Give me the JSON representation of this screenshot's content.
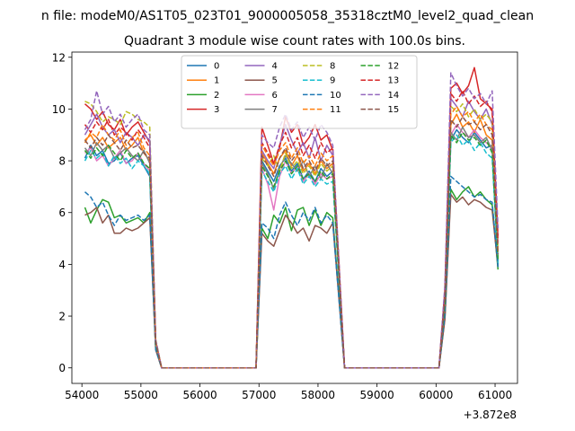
{
  "window": {
    "suptitle": "n file: modeM0/AS1T05_023T01_9000005058_35318cztM0_level2_quad_clean"
  },
  "chart_data": {
    "type": "line",
    "title": "Quadrant 3 module wise count rates with 100.0s bins.",
    "xlabel": "",
    "ylabel": "",
    "x_offset_label": "+3.872e8",
    "xlim": [
      53830,
      61380
    ],
    "ylim": [
      -0.6,
      12.2
    ],
    "x_ticks": [
      54000,
      55000,
      56000,
      57000,
      58000,
      59000,
      60000,
      61000
    ],
    "x_tick_labels": [
      "54000",
      "55000",
      "56000",
      "57000",
      "58000",
      "59000",
      "60000",
      "61000"
    ],
    "y_ticks": [
      0,
      2,
      4,
      6,
      8,
      10,
      12
    ],
    "y_tick_labels": [
      "0",
      "2",
      "4",
      "6",
      "8",
      "10",
      "12"
    ],
    "grid": false,
    "legend": {
      "position": "upper-center",
      "columns": 4
    },
    "bins": {
      "seg1": [
        54050,
        54150,
        54250,
        54350,
        54450,
        54550,
        54650,
        54750,
        54850,
        54950,
        55050,
        55150
      ],
      "seg2": [
        57050,
        57150,
        57250,
        57350,
        57450,
        57550,
        57650,
        57750,
        57850,
        57950,
        58050,
        58150,
        58250
      ],
      "seg3": [
        60250,
        60350,
        60450,
        60550,
        60650,
        60750,
        60850,
        60950,
        61050
      ]
    },
    "series": [
      {
        "name": "0",
        "color": "#1f77b4",
        "dash": false,
        "seg1": [
          8.1,
          8.6,
          8.2,
          8.4,
          7.9,
          8.0,
          8.3,
          7.9,
          8.1,
          8.2,
          7.8,
          7.4
        ],
        "seg2": [
          8.0,
          7.6,
          7.2,
          7.8,
          8.1,
          7.6,
          7.9,
          7.3,
          7.6,
          7.2,
          7.7,
          7.4,
          7.6
        ],
        "seg3": [
          8.8,
          9.2,
          8.9,
          8.7,
          9.1,
          8.8,
          8.5,
          8.6,
          4.0
        ]
      },
      {
        "name": "1",
        "color": "#ff7f0e",
        "dash": false,
        "seg1": [
          8.8,
          9.0,
          8.6,
          8.9,
          8.5,
          8.7,
          8.9,
          8.4,
          8.6,
          8.9,
          8.3,
          8.0
        ],
        "seg2": [
          8.3,
          7.9,
          7.5,
          8.1,
          8.4,
          7.8,
          8.2,
          7.6,
          7.9,
          7.5,
          8.0,
          7.7,
          7.9
        ],
        "seg3": [
          9.4,
          9.8,
          9.3,
          9.5,
          9.1,
          9.6,
          9.0,
          8.8,
          4.3
        ]
      },
      {
        "name": "2",
        "color": "#2ca02c",
        "dash": false,
        "seg1": [
          6.2,
          5.6,
          6.1,
          6.5,
          6.4,
          5.8,
          5.9,
          5.6,
          5.7,
          5.8,
          5.6,
          6.0
        ],
        "seg2": [
          5.4,
          5.0,
          5.9,
          5.6,
          6.2,
          5.3,
          6.1,
          6.2,
          5.5,
          6.1,
          5.5,
          6.0,
          5.8
        ],
        "seg3": [
          6.9,
          6.5,
          6.8,
          7.0,
          6.6,
          6.8,
          6.5,
          6.3,
          3.8
        ]
      },
      {
        "name": "3",
        "color": "#d62728",
        "dash": false,
        "seg1": [
          10.2,
          10.0,
          9.6,
          9.9,
          9.4,
          9.2,
          9.6,
          9.0,
          9.3,
          9.5,
          9.1,
          8.7
        ],
        "seg2": [
          9.3,
          8.6,
          7.9,
          8.5,
          9.7,
          9.1,
          9.4,
          8.6,
          8.9,
          9.4,
          8.8,
          9.0,
          8.4
        ],
        "seg3": [
          10.8,
          11.0,
          10.6,
          10.9,
          11.6,
          10.4,
          10.2,
          10.0,
          5.1
        ]
      },
      {
        "name": "4",
        "color": "#9467bd",
        "dash": false,
        "seg1": [
          9.0,
          9.4,
          9.8,
          9.3,
          9.0,
          9.2,
          8.7,
          9.1,
          8.9,
          8.6,
          9.0,
          8.8
        ],
        "seg2": [
          8.4,
          8.0,
          7.7,
          8.6,
          9.4,
          8.8,
          8.3,
          8.7,
          8.1,
          8.9,
          8.0,
          8.6,
          8.2
        ],
        "seg3": [
          10.4,
          10.1,
          9.7,
          10.3,
          9.9,
          9.6,
          10.0,
          9.4,
          4.8
        ]
      },
      {
        "name": "5",
        "color": "#8c564b",
        "dash": false,
        "seg1": [
          5.9,
          6.0,
          6.2,
          5.6,
          5.9,
          5.2,
          5.2,
          5.4,
          5.3,
          5.4,
          5.6,
          5.8
        ],
        "seg2": [
          5.2,
          4.9,
          4.7,
          5.3,
          5.9,
          5.6,
          5.2,
          5.4,
          4.9,
          5.5,
          5.4,
          5.2,
          5.6
        ],
        "seg3": [
          6.7,
          6.4,
          6.6,
          6.3,
          6.5,
          6.4,
          6.2,
          6.1,
          3.9
        ]
      },
      {
        "name": "6",
        "color": "#e377c2",
        "dash": false,
        "seg1": [
          8.3,
          8.5,
          8.0,
          8.2,
          7.8,
          8.1,
          8.4,
          7.9,
          8.0,
          8.3,
          7.9,
          7.6
        ],
        "seg2": [
          7.7,
          7.1,
          6.1,
          7.4,
          8.0,
          7.5,
          7.8,
          7.2,
          7.5,
          7.1,
          7.5,
          7.3,
          7.4
        ],
        "seg3": [
          9.0,
          9.4,
          9.1,
          8.9,
          9.2,
          8.9,
          8.7,
          8.5,
          4.2
        ]
      },
      {
        "name": "7",
        "color": "#7f7f7f",
        "dash": false,
        "seg1": [
          8.5,
          8.2,
          8.7,
          8.4,
          8.6,
          8.1,
          8.3,
          8.5,
          8.2,
          8.0,
          8.4,
          7.9
        ],
        "seg2": [
          7.9,
          7.5,
          6.9,
          7.7,
          8.2,
          7.9,
          7.6,
          8.0,
          7.4,
          7.8,
          7.3,
          7.9,
          7.5
        ],
        "seg3": [
          9.1,
          8.8,
          9.3,
          8.9,
          9.0,
          8.7,
          8.9,
          8.4,
          4.1
        ]
      },
      {
        "name": "8",
        "color": "#bcbd22",
        "dash": true,
        "seg1": [
          10.3,
          10.2,
          9.9,
          9.5,
          9.7,
          9.6,
          9.4,
          9.9,
          9.8,
          9.6,
          9.5,
          9.3
        ],
        "seg2": [
          8.1,
          7.8,
          8.2,
          7.6,
          8.3,
          7.7,
          8.0,
          7.5,
          7.8,
          7.4,
          7.9,
          7.6,
          7.8
        ],
        "seg3": [
          10.1,
          9.9,
          10.2,
          9.7,
          10.0,
          9.6,
          9.8,
          9.5,
          4.6
        ]
      },
      {
        "name": "9",
        "color": "#17becf",
        "dash": true,
        "seg1": [
          8.0,
          8.4,
          8.1,
          8.3,
          7.8,
          8.2,
          7.9,
          8.1,
          7.7,
          8.0,
          7.8,
          7.5
        ],
        "seg2": [
          7.6,
          7.2,
          6.8,
          7.5,
          7.8,
          7.3,
          7.7,
          7.1,
          7.4,
          7.0,
          7.3,
          7.1,
          7.2
        ],
        "seg3": [
          8.7,
          9.0,
          8.6,
          8.8,
          8.4,
          8.7,
          8.3,
          8.1,
          4.0
        ]
      },
      {
        "name": "10",
        "color": "#1f77b4",
        "dash": true,
        "seg1": [
          6.8,
          6.6,
          6.2,
          6.4,
          5.9,
          5.5,
          5.9,
          5.7,
          5.8,
          5.9,
          5.7,
          5.9
        ],
        "seg2": [
          5.6,
          5.4,
          5.0,
          5.9,
          6.4,
          5.9,
          5.5,
          6.0,
          5.7,
          6.2,
          5.6,
          5.9,
          5.6
        ],
        "seg3": [
          7.4,
          7.2,
          7.0,
          6.8,
          6.6,
          6.7,
          6.5,
          6.4,
          3.9
        ]
      },
      {
        "name": "11",
        "color": "#ff7f0e",
        "dash": true,
        "seg1": [
          8.7,
          9.1,
          8.9,
          9.4,
          9.0,
          8.8,
          9.2,
          8.6,
          8.9,
          9.1,
          8.5,
          8.2
        ],
        "seg2": [
          8.6,
          8.2,
          7.8,
          8.4,
          8.7,
          8.1,
          8.5,
          7.9,
          8.2,
          7.8,
          8.3,
          8.0,
          8.2
        ],
        "seg3": [
          9.8,
          10.1,
          9.7,
          9.9,
          9.5,
          9.8,
          9.4,
          9.2,
          4.5
        ]
      },
      {
        "name": "12",
        "color": "#2ca02c",
        "dash": true,
        "seg1": [
          8.4,
          8.1,
          8.5,
          8.2,
          8.6,
          8.3,
          8.0,
          8.4,
          8.1,
          8.3,
          7.9,
          7.7
        ],
        "seg2": [
          7.8,
          7.4,
          7.0,
          7.6,
          8.0,
          7.5,
          7.8,
          7.3,
          7.5,
          7.2,
          7.6,
          7.3,
          7.5
        ],
        "seg3": [
          9.0,
          8.7,
          9.1,
          8.8,
          8.9,
          8.6,
          8.8,
          8.3,
          4.2
        ]
      },
      {
        "name": "13",
        "color": "#d62728",
        "dash": true,
        "seg1": [
          9.4,
          9.1,
          9.5,
          9.2,
          9.6,
          9.0,
          9.3,
          9.1,
          8.8,
          9.2,
          8.9,
          8.5
        ],
        "seg2": [
          8.7,
          8.3,
          7.9,
          8.6,
          9.1,
          8.5,
          8.9,
          8.2,
          8.6,
          8.1,
          8.7,
          8.3,
          8.5
        ],
        "seg3": [
          10.6,
          10.3,
          10.7,
          10.2,
          10.5,
          10.1,
          10.3,
          9.9,
          4.9
        ]
      },
      {
        "name": "14",
        "color": "#9467bd",
        "dash": true,
        "seg1": [
          9.2,
          9.6,
          10.7,
          9.8,
          10.1,
          9.5,
          9.8,
          9.3,
          9.6,
          9.8,
          9.2,
          9.0
        ],
        "seg2": [
          9.0,
          8.7,
          8.5,
          9.3,
          9.8,
          9.2,
          9.5,
          8.9,
          9.3,
          8.8,
          9.4,
          9.1,
          8.6
        ],
        "seg3": [
          11.4,
          10.9,
          10.5,
          10.8,
          10.4,
          10.6,
          10.2,
          10.7,
          5.4
        ]
      },
      {
        "name": "15",
        "color": "#8c564b",
        "dash": true,
        "seg1": [
          8.8,
          8.5,
          8.9,
          8.6,
          9.0,
          8.7,
          8.4,
          8.8,
          8.5,
          8.6,
          8.3,
          8.1
        ],
        "seg2": [
          8.2,
          7.8,
          7.4,
          8.1,
          8.5,
          8.0,
          8.3,
          7.7,
          8.0,
          7.6,
          8.1,
          7.8,
          8.0
        ],
        "seg3": [
          9.6,
          9.3,
          9.7,
          9.4,
          9.5,
          9.2,
          9.4,
          9.0,
          4.4
        ]
      }
    ]
  }
}
